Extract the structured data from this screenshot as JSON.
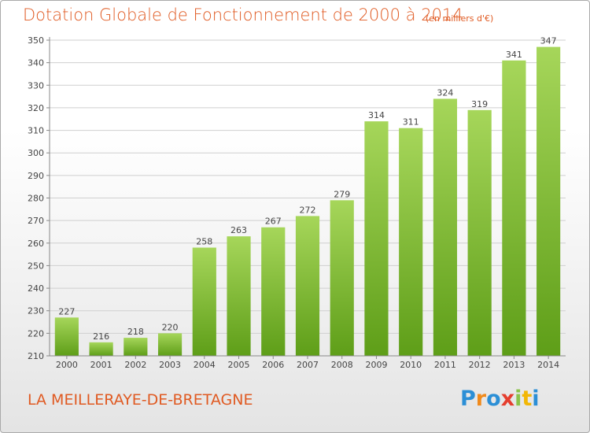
{
  "header": {
    "title": "Dotation Globale de Fonctionnement de 2000 à 2014",
    "subtitle": "(en milliers d'€)"
  },
  "footer": {
    "commune": "LA MEILLERAYE-DE-BRETAGNE",
    "logo_letters": [
      "P",
      "r",
      "o",
      "x",
      "i",
      "t",
      "i"
    ]
  },
  "colors": {
    "title": "#e05a22",
    "bar_light": "#a6d65a",
    "bar_dark": "#5e9e18",
    "grid": "#cfcfcf"
  },
  "chart_data": {
    "type": "bar",
    "title": "Dotation Globale de Fonctionnement de 2000 à 2014",
    "subtitle": "(en milliers d'€)",
    "xlabel": "",
    "ylabel": "",
    "ylim": [
      210,
      350
    ],
    "yticks": [
      210,
      220,
      230,
      240,
      250,
      260,
      270,
      280,
      290,
      300,
      310,
      320,
      330,
      340,
      350
    ],
    "grid": true,
    "categories": [
      "2000",
      "2001",
      "2002",
      "2003",
      "2004",
      "2005",
      "2006",
      "2007",
      "2008",
      "2009",
      "2010",
      "2011",
      "2012",
      "2013",
      "2014"
    ],
    "values": [
      227,
      216,
      218,
      220,
      258,
      263,
      267,
      272,
      279,
      314,
      311,
      324,
      319,
      341,
      347
    ]
  }
}
